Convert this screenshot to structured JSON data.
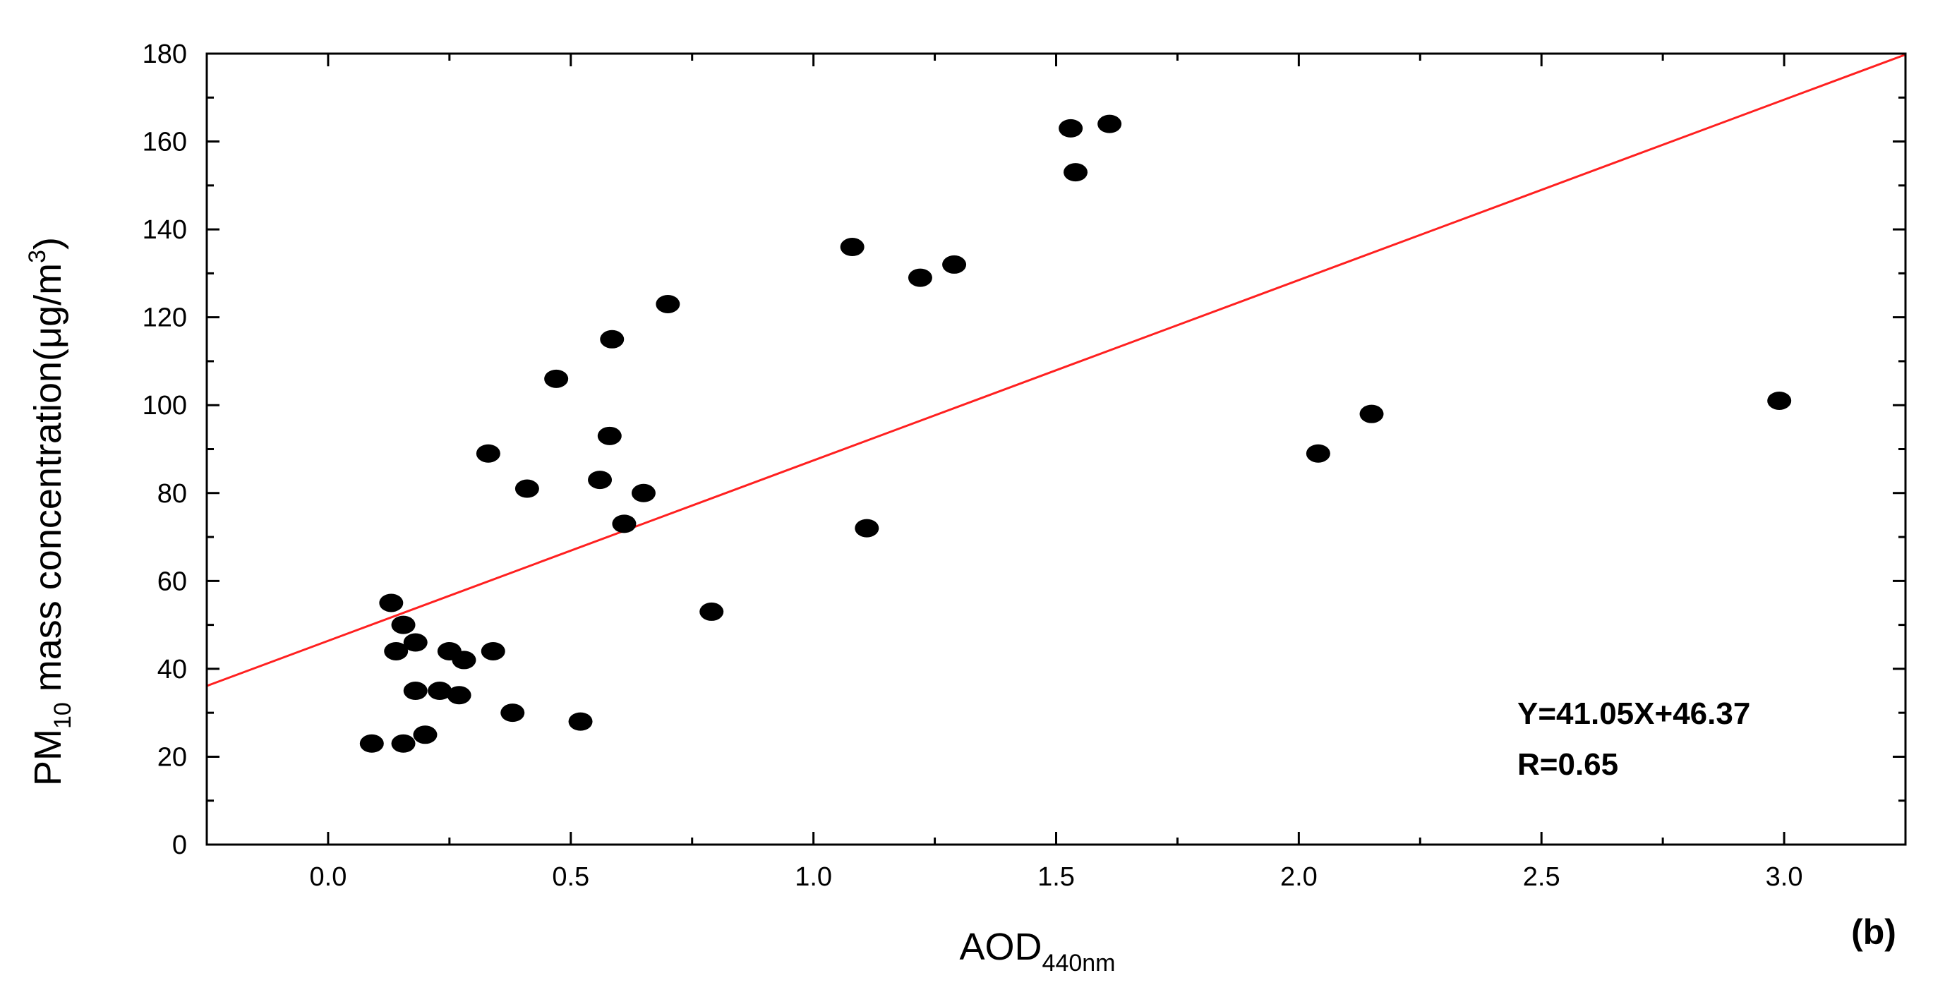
{
  "chart_data": {
    "type": "scatter",
    "xlim": [
      -0.25,
      3.25
    ],
    "ylim": [
      0,
      180
    ],
    "x_ticks": [
      0.0,
      0.5,
      1.0,
      1.5,
      2.0,
      2.5,
      3.0
    ],
    "x_tick_labels": [
      "0.0",
      "0.5",
      "1.0",
      "1.5",
      "2.0",
      "2.5",
      "3.0"
    ],
    "y_ticks": [
      0,
      20,
      40,
      60,
      80,
      100,
      120,
      140,
      160,
      180
    ],
    "y_tick_labels": [
      "0",
      "20",
      "40",
      "60",
      "80",
      "100",
      "120",
      "140",
      "160",
      "180"
    ],
    "xlabel": {
      "main": "AOD",
      "sub": "440nm"
    },
    "ylabel": {
      "pre": "PM",
      "sub": "10",
      "mid": " mass concentration(μg/m",
      "sup": "3",
      "post": ")"
    },
    "grid": false,
    "points": [
      [
        0.09,
        23
      ],
      [
        0.13,
        55
      ],
      [
        0.14,
        44
      ],
      [
        0.155,
        23
      ],
      [
        0.155,
        50
      ],
      [
        0.18,
        35
      ],
      [
        0.18,
        46
      ],
      [
        0.2,
        25
      ],
      [
        0.23,
        35
      ],
      [
        0.25,
        44
      ],
      [
        0.27,
        34
      ],
      [
        0.28,
        42
      ],
      [
        0.33,
        89
      ],
      [
        0.34,
        44
      ],
      [
        0.38,
        30
      ],
      [
        0.41,
        81
      ],
      [
        0.47,
        106
      ],
      [
        0.52,
        28
      ],
      [
        0.56,
        83
      ],
      [
        0.58,
        93
      ],
      [
        0.585,
        115
      ],
      [
        0.61,
        73
      ],
      [
        0.65,
        80
      ],
      [
        0.7,
        123
      ],
      [
        0.79,
        53
      ],
      [
        1.08,
        136
      ],
      [
        1.11,
        72
      ],
      [
        1.22,
        129
      ],
      [
        1.29,
        132
      ],
      [
        1.53,
        163
      ],
      [
        1.54,
        153
      ],
      [
        1.61,
        164
      ],
      [
        2.04,
        89
      ],
      [
        2.15,
        98
      ],
      [
        2.99,
        101
      ]
    ],
    "fit_line": {
      "slope": 41.05,
      "intercept": 46.37,
      "color": "#ff2020"
    },
    "point_color": "#000000",
    "annotations": {
      "equation": "Y=41.05X+46.37",
      "r": "R=0.65",
      "panel": "(b)"
    }
  }
}
